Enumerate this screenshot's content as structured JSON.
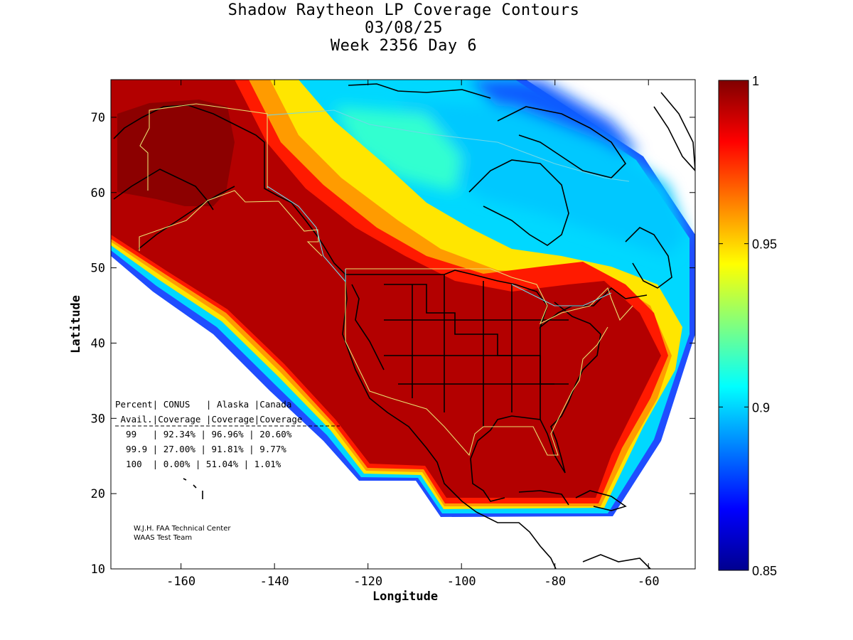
{
  "title": {
    "line1": "Shadow Raytheon LP Coverage Contours",
    "line2": "03/08/25",
    "line3": "Week 2356 Day 6"
  },
  "axes": {
    "xlabel": "Longitude",
    "ylabel": "Latitude",
    "xlim": [
      -175,
      -50
    ],
    "ylim": [
      10,
      75
    ],
    "xticks": [
      {
        "value": -160,
        "label": "-160"
      },
      {
        "value": -140,
        "label": "-140"
      },
      {
        "value": -120,
        "label": "-120"
      },
      {
        "value": -100,
        "label": "-100"
      },
      {
        "value": -80,
        "label": "-80"
      },
      {
        "value": -60,
        "label": "-60"
      }
    ],
    "yticks": [
      {
        "value": 10,
        "label": "10"
      },
      {
        "value": 20,
        "label": "20"
      },
      {
        "value": 30,
        "label": "30"
      },
      {
        "value": 40,
        "label": "40"
      },
      {
        "value": 50,
        "label": "50"
      },
      {
        "value": 60,
        "label": "60"
      },
      {
        "value": 70,
        "label": "70"
      }
    ]
  },
  "colorbar": {
    "range": [
      0.85,
      1
    ],
    "colormap": "jet",
    "ticks": [
      {
        "value": 1,
        "label": "1"
      },
      {
        "value": 0.95,
        "label": "0.95"
      },
      {
        "value": 0.9,
        "label": "0.9"
      },
      {
        "value": 0.85,
        "label": "0.85"
      }
    ]
  },
  "coverage_table": {
    "header1": "Percent| CONUS   | Alaska |Canada",
    "header2": " Avail.|Coverage |Coverage|Coverage",
    "rows": [
      "  99   | 92.34% | 96.96% | 20.60%",
      "  99.9 | 27.00% | 91.81% | 9.77%",
      "  100  | 0.00% | 51.04% | 1.01%"
    ]
  },
  "credit": {
    "line1": "W.J.H. FAA Technical Center",
    "line2": "WAAS Test Team"
  },
  "colors": {
    "full_coverage": "#b30000",
    "alaska_peak": "#8c0000",
    "service_boundary": "#e8e070"
  }
}
